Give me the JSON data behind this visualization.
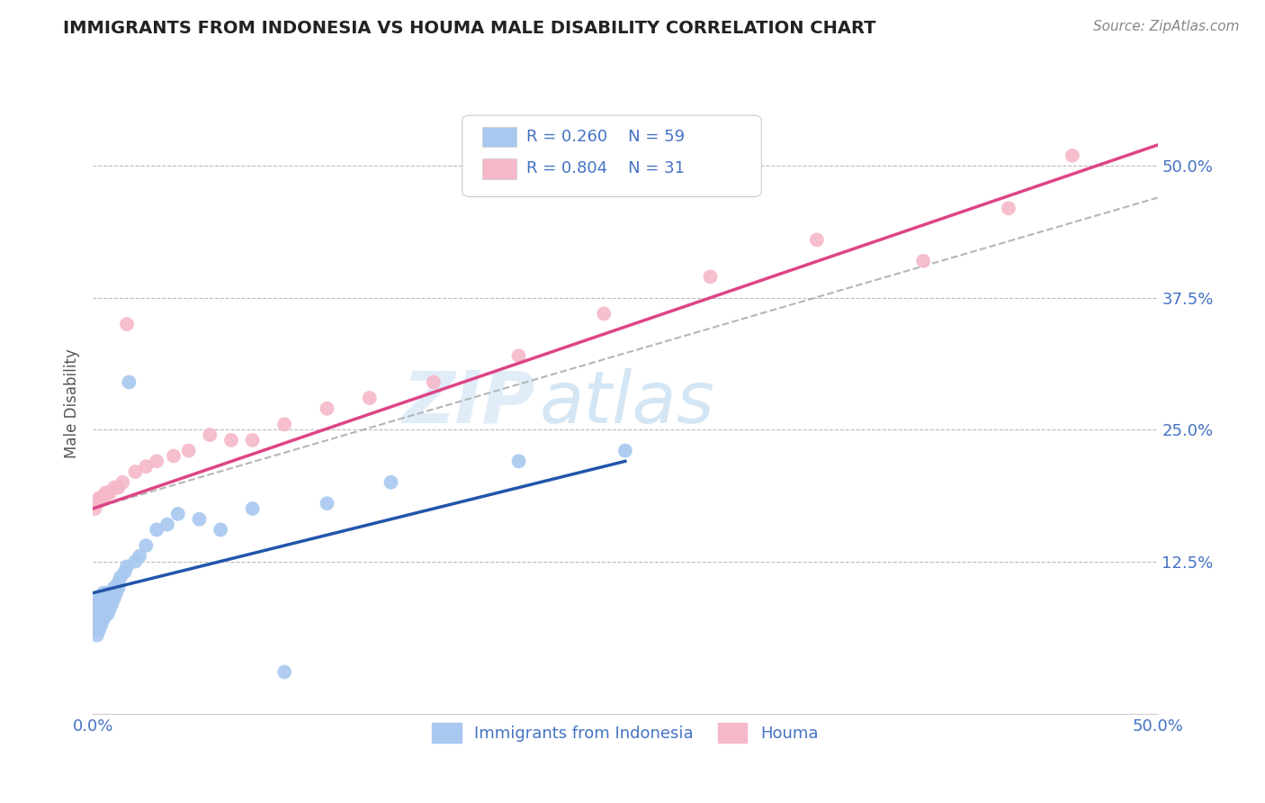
{
  "title": "IMMIGRANTS FROM INDONESIA VS HOUMA MALE DISABILITY CORRELATION CHART",
  "source": "Source: ZipAtlas.com",
  "ylabel_label": "Male Disability",
  "legend_label1": "Immigrants from Indonesia",
  "legend_label2": "Houma",
  "r1": 0.26,
  "n1": 59,
  "r2": 0.804,
  "n2": 31,
  "xlim": [
    0.0,
    0.5
  ],
  "ylim": [
    -0.02,
    0.57
  ],
  "xticks": [
    0.0,
    0.125,
    0.25,
    0.375,
    0.5
  ],
  "xtick_labels": [
    "0.0%",
    "",
    "",
    "",
    "50.0%"
  ],
  "yticks": [
    0.0,
    0.125,
    0.25,
    0.375,
    0.5
  ],
  "ytick_labels": [
    "",
    "12.5%",
    "25.0%",
    "37.5%",
    "50.0%"
  ],
  "color_blue": "#a8c8f0",
  "color_pink": "#f5b8c8",
  "line_blue": "#2255aa",
  "line_pink": "#dd4488",
  "line_gray": "#aaaaaa",
  "watermark_zip": "ZIP",
  "watermark_atlas": "atlas",
  "background": "#ffffff",
  "grid_color": "#bbbbbb",
  "blue_scatter_x": [
    0.001,
    0.001,
    0.001,
    0.001,
    0.002,
    0.002,
    0.002,
    0.002,
    0.002,
    0.002,
    0.002,
    0.003,
    0.003,
    0.003,
    0.003,
    0.003,
    0.003,
    0.004,
    0.004,
    0.004,
    0.004,
    0.004,
    0.005,
    0.005,
    0.005,
    0.005,
    0.006,
    0.006,
    0.006,
    0.007,
    0.007,
    0.007,
    0.008,
    0.008,
    0.009,
    0.009,
    0.01,
    0.01,
    0.011,
    0.012,
    0.012,
    0.013,
    0.015,
    0.016,
    0.017,
    0.02,
    0.022,
    0.025,
    0.03,
    0.035,
    0.04,
    0.05,
    0.06,
    0.075,
    0.09,
    0.11,
    0.14,
    0.2,
    0.25
  ],
  "blue_scatter_y": [
    0.06,
    0.065,
    0.07,
    0.075,
    0.055,
    0.06,
    0.065,
    0.07,
    0.075,
    0.08,
    0.085,
    0.06,
    0.065,
    0.07,
    0.075,
    0.08,
    0.09,
    0.065,
    0.07,
    0.075,
    0.08,
    0.09,
    0.07,
    0.075,
    0.085,
    0.095,
    0.075,
    0.08,
    0.09,
    0.075,
    0.085,
    0.095,
    0.08,
    0.09,
    0.085,
    0.095,
    0.09,
    0.1,
    0.095,
    0.1,
    0.105,
    0.11,
    0.115,
    0.12,
    0.295,
    0.125,
    0.13,
    0.14,
    0.155,
    0.16,
    0.17,
    0.165,
    0.155,
    0.175,
    0.02,
    0.18,
    0.2,
    0.22,
    0.23
  ],
  "pink_scatter_x": [
    0.001,
    0.002,
    0.003,
    0.004,
    0.005,
    0.006,
    0.007,
    0.008,
    0.01,
    0.012,
    0.014,
    0.016,
    0.02,
    0.025,
    0.03,
    0.038,
    0.045,
    0.055,
    0.065,
    0.075,
    0.09,
    0.11,
    0.13,
    0.16,
    0.2,
    0.24,
    0.29,
    0.34,
    0.39,
    0.43,
    0.46
  ],
  "pink_scatter_y": [
    0.175,
    0.18,
    0.185,
    0.185,
    0.185,
    0.19,
    0.19,
    0.19,
    0.195,
    0.195,
    0.2,
    0.35,
    0.21,
    0.215,
    0.22,
    0.225,
    0.23,
    0.245,
    0.24,
    0.24,
    0.255,
    0.27,
    0.28,
    0.295,
    0.32,
    0.36,
    0.395,
    0.43,
    0.41,
    0.46,
    0.51
  ],
  "blue_line_x0": 0.0,
  "blue_line_x1": 0.25,
  "blue_line_y0": 0.095,
  "blue_line_y1": 0.22,
  "pink_line_x0": 0.0,
  "pink_line_x1": 0.5,
  "pink_line_y0": 0.175,
  "pink_line_y1": 0.52,
  "gray_line_x0": 0.0,
  "gray_line_x1": 0.5,
  "gray_line_y0": 0.175,
  "gray_line_y1": 0.47
}
